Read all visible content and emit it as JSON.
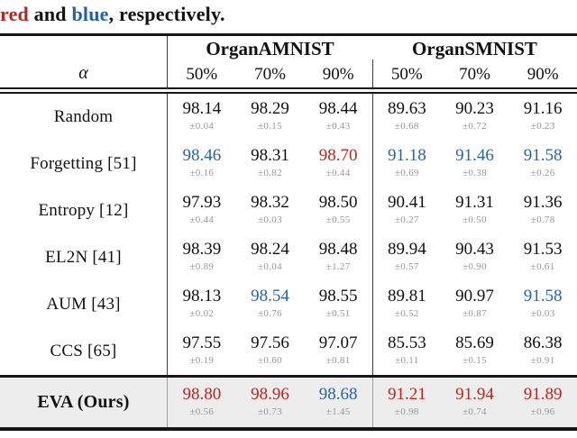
{
  "caption": {
    "red_word": "red",
    "and_text": " and ",
    "blue_word": "blue",
    "tail": ", respectively."
  },
  "colors": {
    "best_red": "#c0231b",
    "second_best_blue": "#2565a8",
    "std_gray": "#979797",
    "highlight_row_bg": "#ededed",
    "rule_black": "#161616"
  },
  "table": {
    "col_symbol": "α",
    "groups": [
      {
        "label": "OrganAMNIST"
      },
      {
        "label": "OrganSMNIST"
      }
    ],
    "subheaders": [
      "50%",
      "70%",
      "90%",
      "50%",
      "70%",
      "90%"
    ],
    "rows": [
      {
        "label": "Random",
        "cells": [
          {
            "value": "98.14",
            "std": "±0.04",
            "color": "black"
          },
          {
            "value": "98.29",
            "std": "±0.15",
            "color": "black"
          },
          {
            "value": "98.44",
            "std": "±0.43",
            "color": "black"
          },
          {
            "value": "89.63",
            "std": "±0.68",
            "color": "black"
          },
          {
            "value": "90.23",
            "std": "±0.72",
            "color": "black"
          },
          {
            "value": "91.16",
            "std": "±0.23",
            "color": "black"
          }
        ]
      },
      {
        "label": "Forgetting [51]",
        "cells": [
          {
            "value": "98.46",
            "std": "±0.16",
            "color": "blue"
          },
          {
            "value": "98.31",
            "std": "±0.82",
            "color": "black"
          },
          {
            "value": "98.70",
            "std": "±0.44",
            "color": "red"
          },
          {
            "value": "91.18",
            "std": "±0.69",
            "color": "blue"
          },
          {
            "value": "91.46",
            "std": "±0.38",
            "color": "blue"
          },
          {
            "value": "91.58",
            "std": "±0.26",
            "color": "blue"
          }
        ]
      },
      {
        "label": "Entropy [12]",
        "cells": [
          {
            "value": "97.93",
            "std": "±0.44",
            "color": "black"
          },
          {
            "value": "98.32",
            "std": "±0.03",
            "color": "black"
          },
          {
            "value": "98.50",
            "std": "±0.55",
            "color": "black"
          },
          {
            "value": "90.41",
            "std": "±0.27",
            "color": "black"
          },
          {
            "value": "91.31",
            "std": "±0.50",
            "color": "black"
          },
          {
            "value": "91.36",
            "std": "±0.78",
            "color": "black"
          }
        ]
      },
      {
        "label": "EL2N [41]",
        "cells": [
          {
            "value": "98.39",
            "std": "±0.89",
            "color": "black"
          },
          {
            "value": "98.24",
            "std": "±0.04",
            "color": "black"
          },
          {
            "value": "98.48",
            "std": "±1.27",
            "color": "black"
          },
          {
            "value": "89.94",
            "std": "±0.57",
            "color": "black"
          },
          {
            "value": "90.43",
            "std": "±0.90",
            "color": "black"
          },
          {
            "value": "91.53",
            "std": "±0.61",
            "color": "black"
          }
        ]
      },
      {
        "label": "AUM [43]",
        "cells": [
          {
            "value": "98.13",
            "std": "±0.02",
            "color": "black"
          },
          {
            "value": "98.54",
            "std": "±0.76",
            "color": "blue"
          },
          {
            "value": "98.55",
            "std": "±0.51",
            "color": "black"
          },
          {
            "value": "89.81",
            "std": "±0.52",
            "color": "black"
          },
          {
            "value": "90.97",
            "std": "±0.87",
            "color": "black"
          },
          {
            "value": "91.58",
            "std": "±0.03",
            "color": "blue"
          }
        ]
      },
      {
        "label": "CCS [65]",
        "cells": [
          {
            "value": "97.55",
            "std": "±0.19",
            "color": "black"
          },
          {
            "value": "97.56",
            "std": "±0.60",
            "color": "black"
          },
          {
            "value": "97.07",
            "std": "±0.81",
            "color": "black"
          },
          {
            "value": "85.53",
            "std": "±0.11",
            "color": "black"
          },
          {
            "value": "85.69",
            "std": "±0.15",
            "color": "black"
          },
          {
            "value": "86.38",
            "std": "±0.91",
            "color": "black"
          }
        ]
      }
    ],
    "highlight_rows": [
      {
        "label": "EVA (Ours)",
        "cells": [
          {
            "value": "98.80",
            "std": "±0.56",
            "color": "red"
          },
          {
            "value": "98.96",
            "std": "±0.73",
            "color": "red"
          },
          {
            "value": "98.68",
            "std": "±1.45",
            "color": "blue"
          },
          {
            "value": "91.21",
            "std": "±0.98",
            "color": "red"
          },
          {
            "value": "91.94",
            "std": "±0.74",
            "color": "red"
          },
          {
            "value": "91.89",
            "std": "±0.96",
            "color": "red"
          }
        ]
      }
    ]
  }
}
